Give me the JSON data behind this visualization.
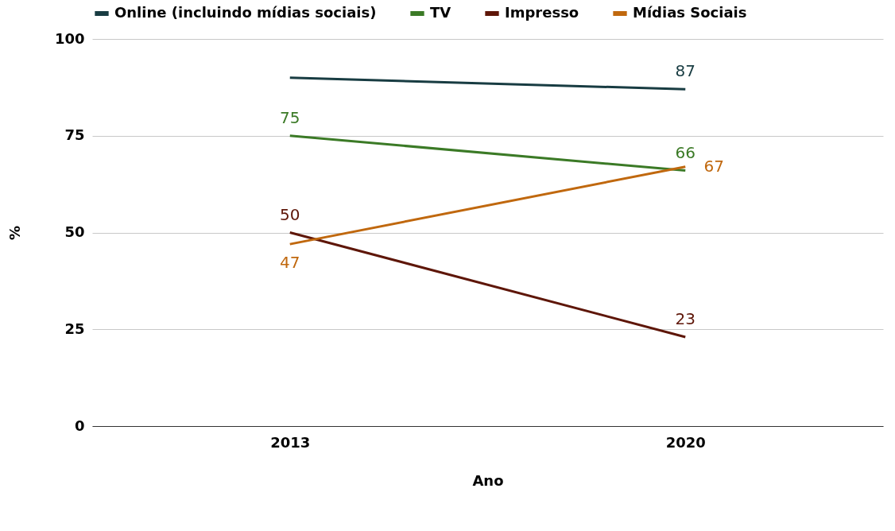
{
  "chart_data": {
    "type": "line",
    "xlabel": "Ano",
    "ylabel": "%",
    "categories": [
      "2013",
      "2020"
    ],
    "ylim": [
      0,
      100
    ],
    "yticks": [
      0,
      25,
      50,
      75,
      100
    ],
    "grid": "y",
    "legend": "top",
    "marker": "none",
    "line_style": "solid",
    "series": [
      {
        "name": "Online (incluindo mídias sociais)",
        "color": "#183c42",
        "values": [
          90,
          87
        ],
        "value_labels": [
          null,
          "87"
        ]
      },
      {
        "name": "TV",
        "color": "#3b7a26",
        "values": [
          75,
          66
        ],
        "value_labels": [
          "75",
          "66"
        ]
      },
      {
        "name": "Impresso",
        "color": "#5e1608",
        "values": [
          50,
          23
        ],
        "value_labels": [
          "50",
          "23"
        ]
      },
      {
        "name": "Mídias Sociais",
        "color": "#c0680e",
        "values": [
          47,
          67
        ],
        "value_labels": [
          "47",
          "67"
        ]
      }
    ]
  }
}
